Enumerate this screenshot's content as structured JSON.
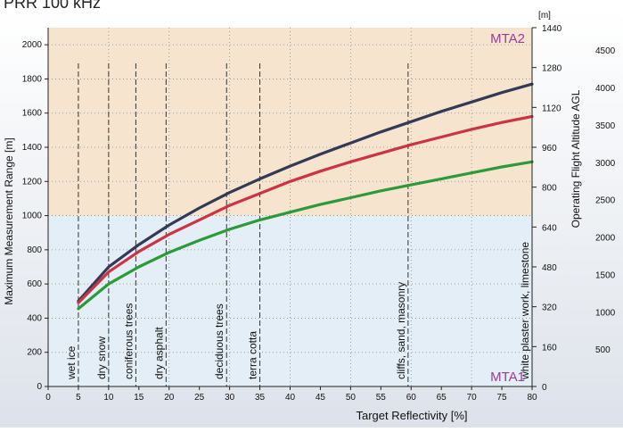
{
  "header_text": "PRR        100 kHz",
  "chart_data": {
    "type": "line",
    "title": "",
    "xlabel": "Target Reflectivity [%]",
    "ylabel": "Maximum Measurement Range [m]",
    "y2label": "[m]",
    "y3label": "Operating Flight Altitude AGL",
    "xlim": [
      0,
      80
    ],
    "ylim": [
      0,
      2100
    ],
    "x_ticks": [
      "0",
      "5",
      "10",
      "15",
      "20",
      "25",
      "30",
      "35",
      "40",
      "45",
      "50",
      "55",
      "60",
      "65",
      "70",
      "75",
      "80"
    ],
    "y_ticks": [
      "0",
      "200",
      "400",
      "600",
      "800",
      "1000",
      "1200",
      "1400",
      "1600",
      "1800",
      "2000"
    ],
    "y2_ticks": [
      "0",
      "160",
      "320",
      "480",
      "640",
      "800",
      "960",
      "1120",
      "1280",
      "1440"
    ],
    "y3_ticks": [
      "500",
      "1000",
      "1500",
      "2000",
      "2500",
      "3000",
      "3500",
      "4000",
      "4500"
    ],
    "grid": true,
    "regions": [
      {
        "name": "MTA1",
        "from": 0,
        "to": 1000,
        "color": "#e3eef6"
      },
      {
        "name": "MTA2",
        "from": 1000,
        "to": 2100,
        "color": "#f6e4cf"
      }
    ],
    "series": [
      {
        "color": "#343a55",
        "x": [
          5,
          10,
          15,
          20,
          25,
          30,
          35,
          40,
          45,
          50,
          55,
          60,
          65,
          70,
          75,
          80
        ],
        "values": [
          500,
          700,
          830,
          945,
          1045,
          1135,
          1215,
          1290,
          1360,
          1425,
          1490,
          1550,
          1610,
          1665,
          1720,
          1770
        ]
      },
      {
        "color": "#cc3344",
        "x": [
          5,
          10,
          15,
          20,
          25,
          30,
          35,
          40,
          45,
          50,
          55,
          60,
          65,
          70,
          75,
          80
        ],
        "values": [
          490,
          670,
          790,
          890,
          975,
          1060,
          1130,
          1200,
          1260,
          1315,
          1365,
          1415,
          1460,
          1505,
          1545,
          1580
        ]
      },
      {
        "color": "#2a9a3a",
        "x": [
          5,
          10,
          15,
          20,
          25,
          30,
          35,
          40,
          45,
          50,
          55,
          60,
          65,
          70,
          75,
          80
        ],
        "values": [
          455,
          600,
          700,
          785,
          855,
          920,
          975,
          1020,
          1065,
          1105,
          1145,
          1180,
          1215,
          1250,
          1285,
          1315
        ]
      }
    ],
    "annotations": [
      {
        "x": 5,
        "text": "wet ice"
      },
      {
        "x": 10,
        "text": "dry snow"
      },
      {
        "x": 14.5,
        "text": "coniferous trees"
      },
      {
        "x": 19.5,
        "text": "dry asphalt"
      },
      {
        "x": 29.5,
        "text": "deciduous trees"
      },
      {
        "x": 35,
        "text": "terra cotta"
      },
      {
        "x": 59.5,
        "text": "cliffs, sand, masonry"
      },
      {
        "x": 80,
        "text": "white plaster work, limestone"
      }
    ]
  }
}
